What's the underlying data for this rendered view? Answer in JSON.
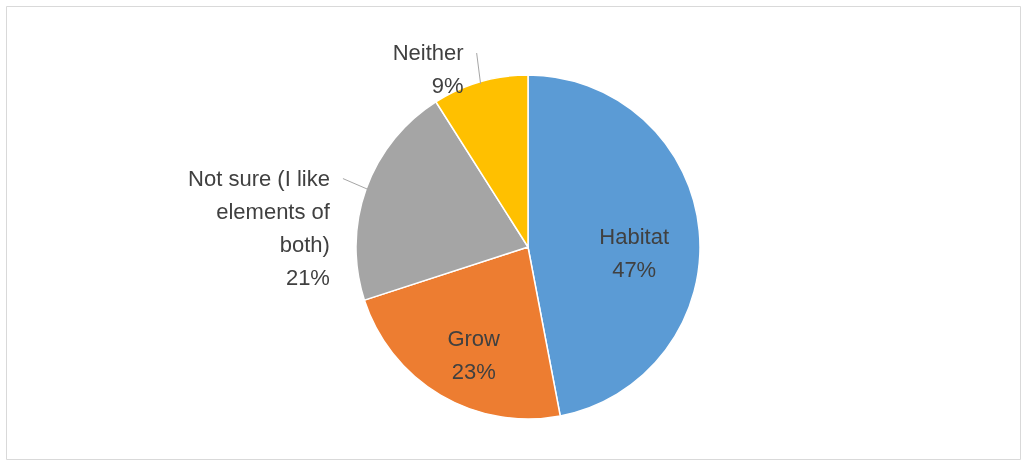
{
  "chart_data": {
    "type": "pie",
    "categories": [
      "Habitat",
      "Grow",
      "Not sure (I like elements of both)",
      "Neither"
    ],
    "values": [
      47,
      23,
      21,
      9
    ],
    "colors": [
      "#5b9bd5",
      "#ed7d31",
      "#a5a5a5",
      "#ffc000"
    ],
    "value_labels": [
      "47%",
      "23%",
      "21%",
      "9%"
    ]
  }
}
